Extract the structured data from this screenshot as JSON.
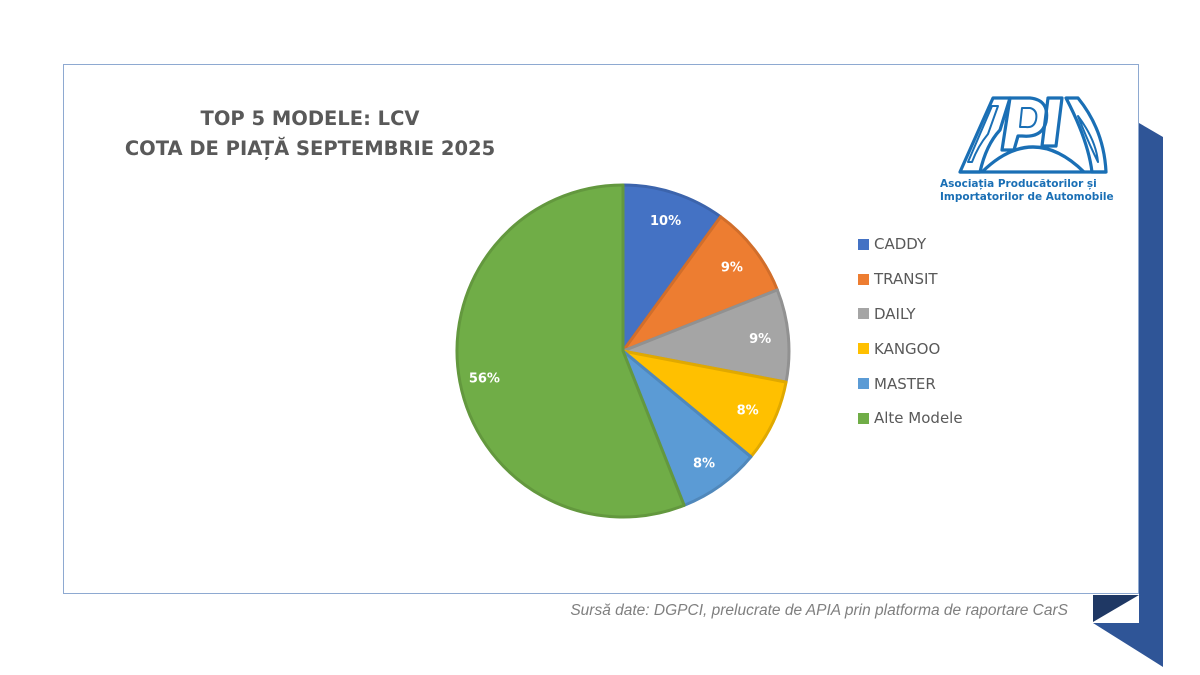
{
  "chart_data": {
    "type": "pie",
    "title": "TOP 5 MODELE: LCV",
    "subtitle": "COTA DE PIAȚĂ SEPTEMBRIE 2025",
    "categories": [
      "CADDY",
      "TRANSIT",
      "DAILY",
      "KANGOO",
      "MASTER",
      "Alte Modele"
    ],
    "values": [
      10,
      9,
      9,
      8,
      8,
      56
    ],
    "labels": [
      "10%",
      "9%",
      "9%",
      "8%",
      "8%",
      "56%"
    ],
    "colors": [
      "#4472c4",
      "#ed7d31",
      "#a5a5a5",
      "#ffc000",
      "#5b9bd5",
      "#70ad47"
    ],
    "unit": "%",
    "legend_position": "right",
    "start_angle_deg": 0,
    "direction": "clockwise"
  },
  "logo": {
    "mark": "APIA",
    "line1": "Asociația Producătorilor și",
    "line2": "Importatorilor de Automobile",
    "color": "#1a6fb5"
  },
  "source": "Sursă date: DGPCI, prelucrate de APIA prin platforma de raportare CarS",
  "theme": {
    "ribbon": "#2f5597",
    "ribbon_dark": "#1f3864",
    "frame": "#8ea9d1"
  }
}
